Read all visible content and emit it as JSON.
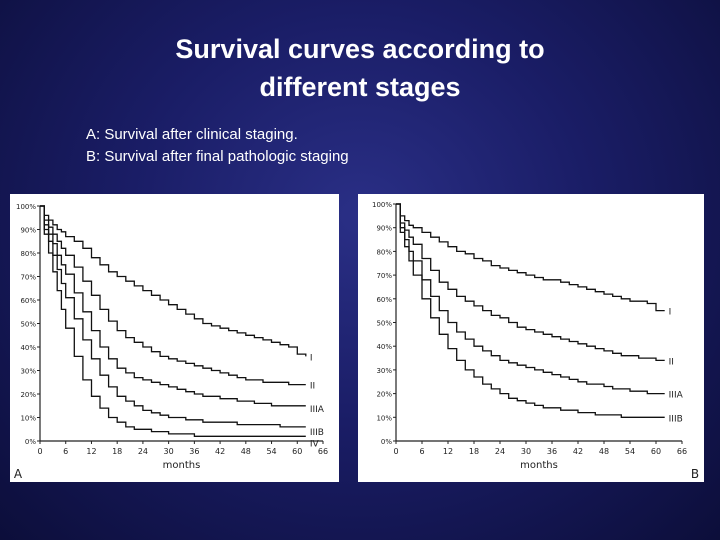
{
  "slide": {
    "title_line1": "Survival curves according to",
    "title_line2": "different stages",
    "caption_a": "A: Survival after clinical staging.",
    "caption_b": "B: Survival after final pathologic staging"
  },
  "chart_data": [
    {
      "type": "line",
      "panel_label": "A",
      "xlabel": "months",
      "ylabel": "",
      "xlim": [
        0,
        66
      ],
      "ylim": [
        0,
        100
      ],
      "x_ticks": [
        "0",
        "6",
        "12",
        "18",
        "24",
        "30",
        "36",
        "42",
        "48",
        "54",
        "60",
        "66"
      ],
      "y_ticks": [
        "0%",
        "10%",
        "20%",
        "30%",
        "40%",
        "50%",
        "60%",
        "70%",
        "80%",
        "90%",
        "100%"
      ],
      "series": [
        {
          "name": "I",
          "x": [
            0,
            1,
            2,
            3,
            4,
            5,
            6,
            8,
            10,
            12,
            14,
            16,
            18,
            20,
            22,
            24,
            26,
            28,
            30,
            32,
            34,
            36,
            38,
            40,
            42,
            44,
            46,
            48,
            50,
            52,
            54,
            56,
            58,
            60,
            62
          ],
          "y": [
            100,
            96,
            94,
            92,
            90,
            89,
            87,
            85,
            82,
            78,
            75,
            72,
            70,
            68,
            66,
            64,
            62,
            60,
            58,
            56,
            54,
            52,
            50,
            49,
            48,
            47,
            46,
            45,
            44,
            43,
            42,
            41,
            40,
            37,
            36
          ]
        },
        {
          "name": "II",
          "x": [
            0,
            1,
            2,
            3,
            4,
            5,
            6,
            8,
            10,
            12,
            14,
            16,
            18,
            20,
            22,
            24,
            26,
            28,
            30,
            32,
            34,
            36,
            38,
            40,
            42,
            44,
            46,
            48,
            50,
            52,
            54,
            56,
            58,
            60,
            62
          ],
          "y": [
            100,
            94,
            91,
            88,
            85,
            82,
            79,
            74,
            68,
            62,
            56,
            51,
            47,
            44,
            42,
            40,
            38,
            36,
            35,
            34,
            33,
            32,
            31,
            30,
            29,
            28,
            27,
            26,
            26,
            25,
            25,
            25,
            24,
            24,
            24
          ]
        },
        {
          "name": "IIIA",
          "x": [
            0,
            1,
            2,
            3,
            4,
            5,
            6,
            8,
            10,
            12,
            14,
            16,
            18,
            20,
            22,
            24,
            26,
            28,
            30,
            32,
            34,
            36,
            38,
            40,
            42,
            44,
            46,
            48,
            50,
            52,
            54,
            56,
            58,
            60,
            62
          ],
          "y": [
            100,
            92,
            88,
            84,
            79,
            75,
            71,
            63,
            55,
            47,
            40,
            35,
            31,
            29,
            27,
            26,
            25,
            24,
            23,
            22,
            21,
            20,
            19,
            19,
            18,
            18,
            17,
            17,
            16,
            16,
            15,
            15,
            15,
            15,
            15
          ]
        },
        {
          "name": "IIIB",
          "x": [
            0,
            1,
            2,
            3,
            4,
            5,
            6,
            8,
            10,
            12,
            14,
            16,
            18,
            20,
            22,
            24,
            26,
            28,
            30,
            32,
            34,
            36,
            38,
            40,
            42,
            44,
            46,
            48,
            50,
            52,
            54,
            56,
            58,
            60,
            62
          ],
          "y": [
            100,
            90,
            85,
            79,
            73,
            67,
            61,
            52,
            43,
            35,
            28,
            23,
            19,
            17,
            15,
            13,
            12,
            11,
            10,
            10,
            9,
            9,
            8,
            8,
            8,
            8,
            7,
            7,
            7,
            7,
            7,
            6,
            6,
            6,
            6
          ]
        },
        {
          "name": "IV",
          "x": [
            0,
            1,
            2,
            3,
            4,
            5,
            6,
            8,
            10,
            12,
            14,
            16,
            18,
            20,
            22,
            24,
            26,
            28,
            30,
            32,
            34,
            36,
            38,
            40,
            42,
            44,
            46,
            48,
            50,
            52,
            54,
            56,
            58,
            60,
            62
          ],
          "y": [
            100,
            88,
            80,
            72,
            64,
            56,
            48,
            36,
            26,
            19,
            14,
            10,
            8,
            6,
            5,
            5,
            4,
            4,
            3,
            3,
            3,
            2,
            2,
            2,
            2,
            2,
            2,
            2,
            2,
            2,
            2,
            2,
            2,
            2,
            2
          ]
        }
      ]
    },
    {
      "type": "line",
      "panel_label": "B",
      "xlabel": "months",
      "ylabel": "",
      "xlim": [
        0,
        66
      ],
      "ylim": [
        0,
        100
      ],
      "x_ticks": [
        "0",
        "6",
        "12",
        "18",
        "24",
        "30",
        "36",
        "42",
        "48",
        "54",
        "60",
        "66"
      ],
      "y_ticks": [
        "0%",
        "10%",
        "20%",
        "30%",
        "40%",
        "50%",
        "60%",
        "70%",
        "80%",
        "90%",
        "100%"
      ],
      "series": [
        {
          "name": "I",
          "x": [
            0,
            1,
            2,
            3,
            4,
            6,
            8,
            10,
            12,
            14,
            16,
            18,
            20,
            22,
            24,
            26,
            28,
            30,
            32,
            34,
            36,
            38,
            40,
            42,
            44,
            46,
            48,
            50,
            52,
            54,
            56,
            58,
            60,
            62
          ],
          "y": [
            100,
            95,
            93,
            91,
            90,
            88,
            86,
            84,
            82,
            80,
            79,
            77,
            76,
            74,
            73,
            72,
            71,
            70,
            69,
            68,
            68,
            67,
            66,
            65,
            64,
            63,
            62,
            61,
            60,
            59,
            59,
            58,
            55,
            55
          ]
        },
        {
          "name": "II",
          "x": [
            0,
            1,
            2,
            3,
            4,
            6,
            8,
            10,
            12,
            14,
            16,
            18,
            20,
            22,
            24,
            26,
            28,
            30,
            32,
            34,
            36,
            38,
            40,
            42,
            44,
            46,
            48,
            50,
            52,
            54,
            56,
            58,
            60,
            62
          ],
          "y": [
            100,
            92,
            89,
            86,
            83,
            77,
            72,
            67,
            64,
            61,
            59,
            57,
            55,
            53,
            52,
            50,
            48,
            47,
            46,
            45,
            44,
            43,
            42,
            41,
            40,
            39,
            38,
            37,
            36,
            36,
            35,
            35,
            34,
            34
          ]
        },
        {
          "name": "IIIA",
          "x": [
            0,
            1,
            2,
            3,
            4,
            6,
            8,
            10,
            12,
            14,
            16,
            18,
            20,
            22,
            24,
            26,
            28,
            30,
            32,
            34,
            36,
            38,
            40,
            42,
            44,
            46,
            48,
            50,
            52,
            54,
            56,
            58,
            60,
            62
          ],
          "y": [
            100,
            90,
            85,
            80,
            76,
            68,
            61,
            55,
            50,
            46,
            43,
            40,
            38,
            36,
            34,
            33,
            32,
            31,
            30,
            29,
            28,
            27,
            26,
            25,
            24,
            24,
            23,
            22,
            22,
            21,
            21,
            20,
            20,
            20
          ]
        },
        {
          "name": "IIIB",
          "x": [
            0,
            1,
            2,
            3,
            4,
            6,
            8,
            10,
            12,
            14,
            16,
            18,
            20,
            22,
            24,
            26,
            28,
            30,
            32,
            34,
            36,
            38,
            40,
            42,
            44,
            46,
            48,
            50,
            52,
            54,
            56,
            58,
            60,
            62
          ],
          "y": [
            100,
            88,
            82,
            76,
            70,
            60,
            52,
            45,
            39,
            34,
            30,
            27,
            24,
            22,
            20,
            18,
            17,
            16,
            15,
            14,
            14,
            13,
            13,
            12,
            12,
            11,
            11,
            11,
            10,
            10,
            10,
            10,
            10,
            10
          ]
        }
      ]
    }
  ]
}
